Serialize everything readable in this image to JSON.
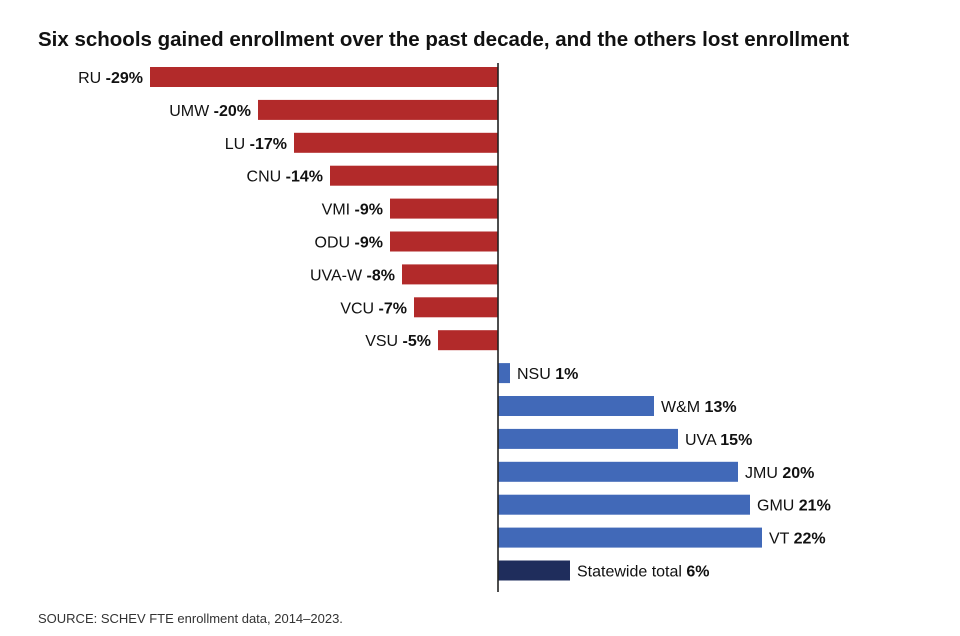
{
  "chart_data": {
    "type": "bar",
    "orientation": "horizontal",
    "title": "Six schools gained enrollment over the past decade, and the others lost enrollment",
    "xlabel": "",
    "ylabel": "",
    "xlim": [
      -29,
      22
    ],
    "grid": false,
    "unit": "%",
    "categories": [
      "RU",
      "UMW",
      "LU",
      "CNU",
      "VMI",
      "ODU",
      "UVA-W",
      "VCU",
      "VSU",
      "NSU",
      "W&M",
      "UVA",
      "JMU",
      "GMU",
      "VT",
      "Statewide total"
    ],
    "values": [
      -29,
      -20,
      -17,
      -14,
      -9,
      -9,
      -8,
      -7,
      -5,
      1,
      13,
      15,
      20,
      21,
      22,
      6
    ],
    "value_labels": [
      "-29%",
      "-20%",
      "-17%",
      "-14%",
      "-9%",
      "-9%",
      "-8%",
      "-7%",
      "-5%",
      "1%",
      "13%",
      "15%",
      "20%",
      "21%",
      "22%",
      "6%"
    ],
    "colors": {
      "negative": "#B22A2A",
      "positive": "#4169B8",
      "total": "#1F2D5C",
      "axis": "#222222"
    },
    "source": "SOURCE: SCHEV FTE enrollment data, 2014–2023."
  }
}
